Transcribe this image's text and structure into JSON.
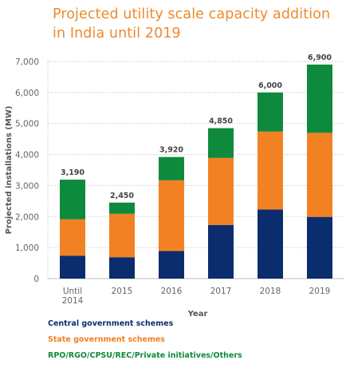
{
  "chart_data": {
    "type": "bar",
    "stacked": true,
    "title": "Projected utility scale capacity addition in India until 2019",
    "title_lines": [
      "Projected utility scale capacity addition",
      "in India until 2019"
    ],
    "xlabel": "Year",
    "ylabel": "Projected installations (MW)",
    "ylim": [
      0,
      7000
    ],
    "yticks": [
      "0",
      "1,000",
      "2,000",
      "3,000",
      "4,000",
      "5,000",
      "6,000",
      "7,000"
    ],
    "ytick_values": [
      0,
      1000,
      2000,
      3000,
      4000,
      5000,
      6000,
      7000
    ],
    "grid": "horizontal dotted",
    "legend_placement": "bottom",
    "categories": [
      [
        "Until",
        "2014"
      ],
      [
        "2015"
      ],
      [
        "2016"
      ],
      [
        "2017"
      ],
      [
        "2018"
      ],
      [
        "2019"
      ]
    ],
    "series": [
      {
        "name": "Central government schemes",
        "color": "#0b2d6e",
        "values": [
          740,
          690,
          890,
          1730,
          2230,
          1990
        ]
      },
      {
        "name": "State government schemes",
        "color": "#f28123",
        "values": [
          1170,
          1400,
          2280,
          2160,
          2510,
          2710
        ]
      },
      {
        "name": "RPO/RGO/CPSU/REC/Private initiatives/Others",
        "color": "#0e8a3c",
        "values": [
          1280,
          360,
          750,
          960,
          1260,
          2200
        ]
      }
    ],
    "totals": [
      "3,190",
      "2,450",
      "3,920",
      "4,850",
      "6,000",
      "6,900"
    ],
    "total_values": [
      3190,
      2450,
      3920,
      4850,
      6000,
      6900
    ]
  }
}
